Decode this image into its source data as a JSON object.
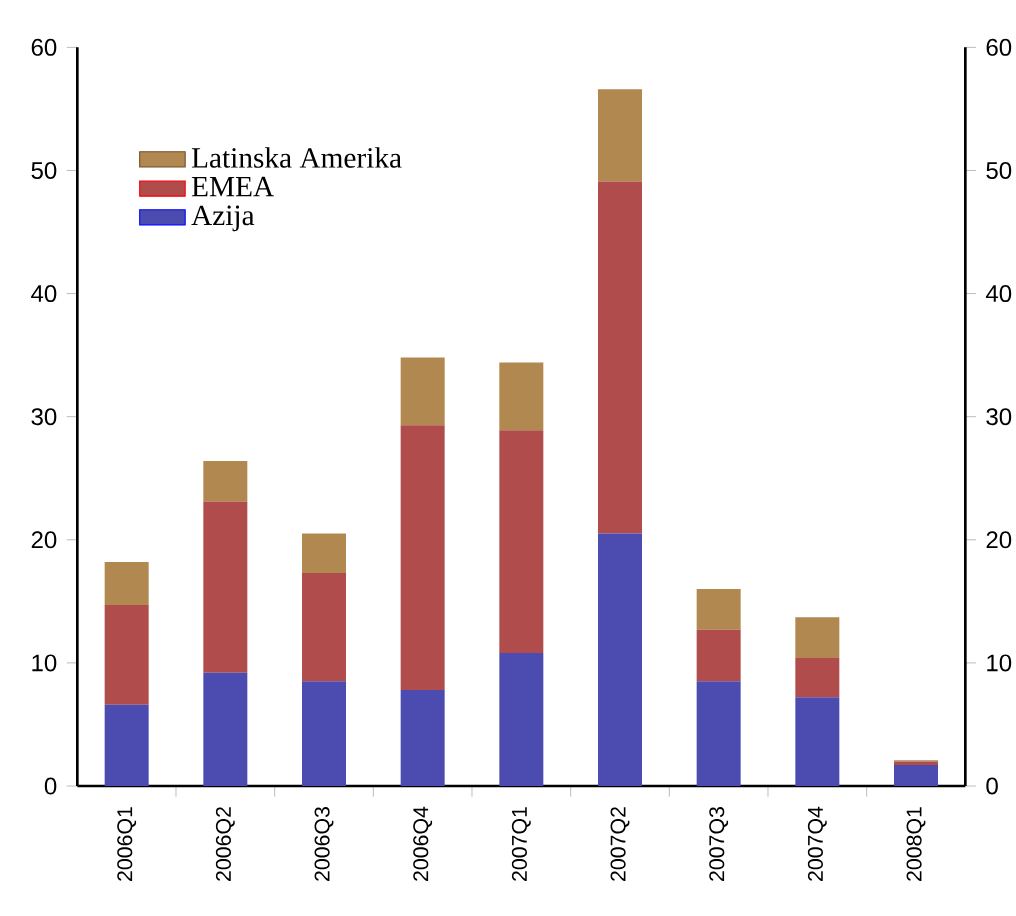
{
  "chart_data": {
    "type": "bar",
    "stacked": true,
    "categories": [
      "2006Q1",
      "2006Q2",
      "2006Q3",
      "2006Q4",
      "2007Q1",
      "2007Q2",
      "2007Q3",
      "2007Q4",
      "2008Q1"
    ],
    "series": [
      {
        "name": "Azija",
        "color": "#4c4cb0",
        "values": [
          6.6,
          9.2,
          8.5,
          7.8,
          10.8,
          20.5,
          8.5,
          7.2,
          1.7
        ]
      },
      {
        "name": "EMEA",
        "color": "#b04c4c",
        "values": [
          8.1,
          13.9,
          8.8,
          21.5,
          18.1,
          28.6,
          4.2,
          3.2,
          0.3
        ]
      },
      {
        "name": "Latinska Amerika",
        "color": "#b08850",
        "values": [
          3.5,
          3.3,
          3.2,
          5.5,
          5.5,
          7.5,
          3.3,
          3.3,
          0.1
        ]
      }
    ],
    "ylim": [
      0,
      60
    ],
    "yticks": [
      0,
      10,
      20,
      30,
      40,
      50,
      60
    ],
    "y2lim": [
      0,
      60
    ],
    "y2ticks": [
      0,
      10,
      20,
      30,
      40,
      50,
      60
    ],
    "legend": "top left"
  }
}
